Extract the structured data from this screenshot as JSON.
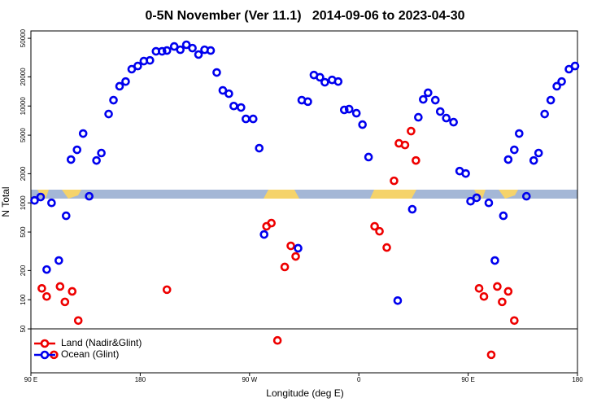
{
  "chart_data": {
    "type": "scatter",
    "title": "0-5N November (Ver 11.1)   2014-09-06 to 2023-04-30",
    "xlabel": "Longitude (deg E)",
    "ylabel": "N Total",
    "xlim": [
      90,
      540
    ],
    "ylim": [
      17.6,
      59600
    ],
    "yscale": "log",
    "legend": "lower left",
    "xticks": [
      {
        "value": 90,
        "label": "90 E"
      },
      180,
      {
        "value": 270,
        "label": "90 W"
      },
      {
        "value": 360,
        "label": "0"
      },
      {
        "value": 450,
        "label": "90 E"
      },
      {
        "value": 540,
        "label": "180"
      }
    ],
    "yticks": [
      50,
      100,
      200,
      500,
      1000,
      2000,
      5000,
      10000,
      20000,
      50000
    ],
    "series": [
      {
        "name": "Land (Nadir&Glint)",
        "color": "#ee0000",
        "x": [
          99,
          103,
          109,
          114,
          118,
          124,
          129,
          202,
          284,
          288,
          293,
          299,
          304,
          308,
          373,
          377,
          383,
          389,
          393,
          398,
          403,
          407,
          459,
          463,
          469,
          474,
          478,
          483,
          488
        ],
        "values": [
          131,
          108,
          27,
          137,
          95,
          122,
          61,
          127,
          573,
          618,
          38,
          218,
          360,
          280,
          573,
          509,
          346,
          1690,
          4120,
          3960,
          5510,
          2740,
          131,
          108,
          27,
          137,
          95,
          122,
          61
        ]
      },
      {
        "name": "Ocean (Glint)",
        "color": "#0000ee",
        "x": [
          93,
          98,
          103,
          107,
          113,
          119,
          123,
          128,
          133,
          138,
          144,
          148,
          154,
          158,
          163,
          168,
          173,
          178,
          183,
          188,
          193,
          198,
          202,
          208,
          213,
          218,
          223,
          228,
          233,
          238,
          243,
          248,
          253,
          257,
          263,
          267,
          273,
          278,
          282,
          310,
          313,
          318,
          323,
          328,
          332,
          338,
          343,
          348,
          352,
          358,
          363,
          368,
          392,
          404,
          409,
          413,
          417,
          423,
          427,
          432,
          438,
          443,
          448,
          452,
          457,
          467,
          472,
          479,
          483,
          488,
          492,
          498,
          504,
          508,
          513,
          518,
          523,
          527,
          533,
          538
        ],
        "values": [
          1060,
          1150,
          205,
          1000,
          254,
          736,
          2800,
          3530,
          5200,
          1170,
          2740,
          3270,
          8270,
          11500,
          16000,
          17900,
          24000,
          25900,
          29100,
          29600,
          36700,
          36700,
          37400,
          41200,
          38100,
          42900,
          39600,
          34000,
          38100,
          37400,
          22200,
          14500,
          13400,
          10000,
          9660,
          7360,
          7360,
          3670,
          472,
          340,
          11500,
          11100,
          20900,
          19800,
          17600,
          18600,
          17900,
          9120,
          9290,
          8430,
          6430,
          2970,
          98,
          859,
          7650,
          11700,
          13700,
          11500,
          8770,
          7500,
          6810,
          2130,
          2010,
          1040,
          1130,
          1000,
          254,
          736,
          2800,
          3530,
          5200,
          1170,
          2740,
          3270,
          8270,
          11500,
          16000,
          17900,
          24000,
          25900
        ]
      }
    ]
  }
}
